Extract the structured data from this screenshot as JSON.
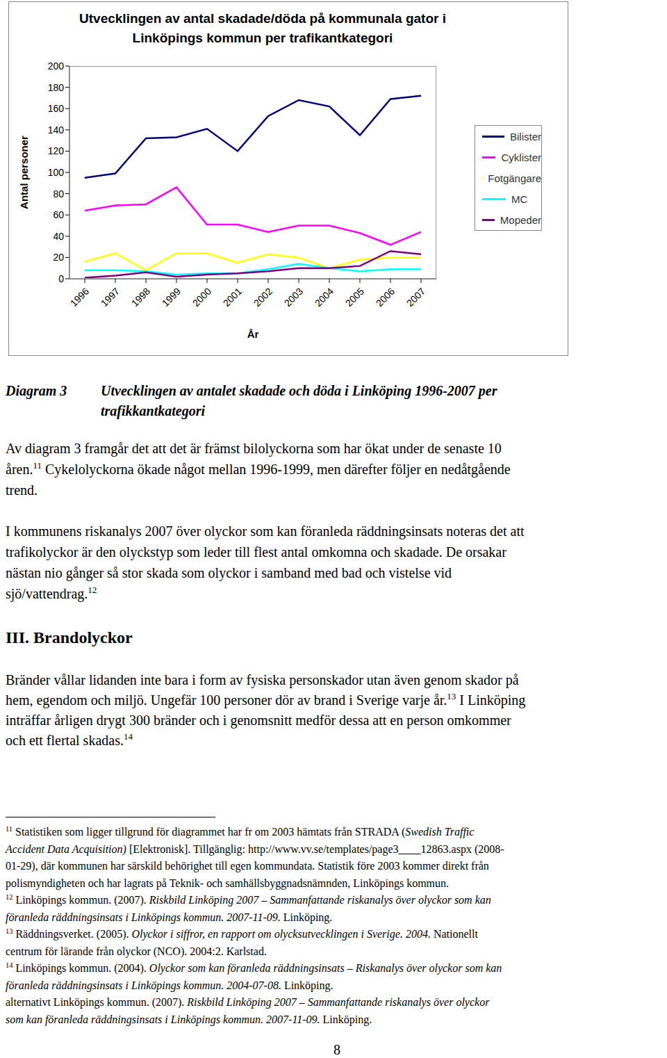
{
  "chart_data": {
    "type": "line",
    "title": "Utvecklingen av antal skadade/döda på kommunala gator i\nLinköpings kommun per trafikantkategori",
    "x_label": "År",
    "y_label": "Antal personer",
    "categories": [
      "1996",
      "1997",
      "1998",
      "1999",
      "2000",
      "2001",
      "2002",
      "2003",
      "2004",
      "2005",
      "2006",
      "2007"
    ],
    "ylim": [
      0,
      200
    ],
    "yticks": [
      0,
      20,
      40,
      60,
      80,
      100,
      120,
      140,
      160,
      180,
      200
    ],
    "grid": false,
    "legend": "right",
    "series": [
      {
        "name": "Bilister",
        "color": "#000080",
        "values": [
          95,
          99,
          132,
          133,
          141,
          120,
          153,
          168,
          162,
          135,
          169,
          172
        ]
      },
      {
        "name": "Cyklister",
        "color": "#ff00ff",
        "values": [
          64,
          69,
          70,
          86,
          51,
          51,
          44,
          50,
          50,
          43,
          32,
          44
        ]
      },
      {
        "name": "Fotgängare",
        "color": "#ffff00",
        "values": [
          16,
          24,
          8,
          24,
          24,
          15,
          23,
          20,
          10,
          18,
          20,
          20
        ]
      },
      {
        "name": "MC",
        "color": "#00ffff",
        "values": [
          8,
          8,
          7,
          4,
          5,
          5,
          9,
          14,
          10,
          7,
          9,
          9
        ]
      },
      {
        "name": "Mopeder",
        "color": "#800080",
        "values": [
          1,
          3,
          6,
          2,
          4,
          5,
          7,
          10,
          10,
          12,
          26,
          23
        ]
      }
    ]
  },
  "caption": {
    "label": "Diagram 3",
    "lines": [
      "Utvecklingen av antalet skadade och döda i Linköping 1996-2007 per",
      "trafikkantkategori"
    ]
  },
  "paragraphs": [
    [
      [
        {
          "text": "Av diagram 3 framgår det att det är främst bilolyckorna som har ökat under de senaste 10"
        }
      ],
      [
        {
          "text": "åren."
        },
        {
          "text": "11",
          "style": "sup"
        },
        {
          "text": " Cykelolyckorna ökade något mellan 1996-1999, men därefter följer en nedåtgående"
        }
      ],
      [
        {
          "text": "trend."
        }
      ]
    ],
    [
      [
        {
          "text": "I kommunens riskanalys 2007 över olyckor som kan föranleda räddningsinsats noteras det att"
        }
      ],
      [
        {
          "text": "trafikolyckor är den olyckstyp som leder till flest antal omkomna och skadade. De orsakar"
        }
      ],
      [
        {
          "text": "nästan nio gånger så stor skada som olyckor i samband med bad och vistelse vid"
        }
      ],
      [
        {
          "text": "sjö/vattendrag."
        },
        {
          "text": "12",
          "style": "sup"
        }
      ]
    ]
  ],
  "heading": "III. Brandolyckor",
  "paragraphs_after": [
    [
      [
        {
          "text": "Bränder vållar lidanden inte bara i form av fysiska personskador utan även genom skador på"
        }
      ],
      [
        {
          "text": "hem, egendom och miljö. Ungefär 100 personer dör av brand i Sverige varje år."
        },
        {
          "text": "13",
          "style": "sup"
        },
        {
          "text": " I Linköping"
        }
      ],
      [
        {
          "text": "inträffar årligen drygt 300 bränder och i genomsnitt medför dessa att en person omkommer"
        }
      ],
      [
        {
          "text": "och ett flertal skadas."
        },
        {
          "text": "14",
          "style": "sup"
        }
      ]
    ]
  ],
  "footnotes": [
    [
      {
        "text": "11",
        "style": "sup"
      },
      {
        "text": " Statistiken som ligger tillgrund för diagrammet har fr om 2003 hämtats från STRADA ("
      },
      {
        "text": "Swedish Traffic",
        "style": "italic"
      }
    ],
    [
      {
        "text": "Accident Data Acquisition)",
        "style": "italic"
      },
      {
        "text": " [Elektronisk]. Tillgänglig: http://www.vv.se/templates/page3____12863.aspx (2008-"
      }
    ],
    [
      {
        "text": "01-29), där kommunen har särskild behörighet till egen kommundata. Statistik före 2003 kommer direkt från"
      }
    ],
    [
      {
        "text": "polismyndigheten och har lagrats på Teknik- och samhällsbyggnadsnämnden, Linköpings kommun."
      }
    ],
    [
      {
        "text": "12",
        "style": "sup"
      },
      {
        "text": " Linköpings kommun. (2007). "
      },
      {
        "text": "Riskbild Linköping 2007 – Sammanfattande riskanalys över olyckor som kan",
        "style": "italic"
      }
    ],
    [
      {
        "text": "föranleda räddningsinsats i Linköpings kommun. 2007-11-09.",
        "style": "italic"
      },
      {
        "text": " Linköping."
      }
    ],
    [
      {
        "text": "13",
        "style": "sup"
      },
      {
        "text": " Räddningsverket. (2005). "
      },
      {
        "text": "Olyckor i siffror, en rapport om olycksutvecklingen i Sverige. 2004.",
        "style": "italic"
      },
      {
        "text": " Nationellt"
      }
    ],
    [
      {
        "text": "centrum för lärande från olyckor (NCO). 2004:2. Karlstad."
      }
    ],
    [
      {
        "text": "14",
        "style": "sup"
      },
      {
        "text": " Linköpings kommun. (2004). "
      },
      {
        "text": "Olyckor som kan föranleda räddningsinsats – Riskanalys över olyckor som kan",
        "style": "italic"
      }
    ],
    [
      {
        "text": "föranleda räddningsinsats i Linköpings kommun. 2004-07-08.",
        "style": "italic"
      },
      {
        "text": " Linköping."
      }
    ],
    [
      {
        "text": "alternativt Linköpings kommun. (2007). "
      },
      {
        "text": "Riskbild Linköping 2007 – Sammanfattande riskanalys över olyckor",
        "style": "italic"
      }
    ],
    [
      {
        "text": "som kan föranleda räddningsinsats i Linköpings kommun. 2007-11-09.",
        "style": "italic"
      },
      {
        "text": " Linköping."
      }
    ]
  ],
  "page_number": "8"
}
